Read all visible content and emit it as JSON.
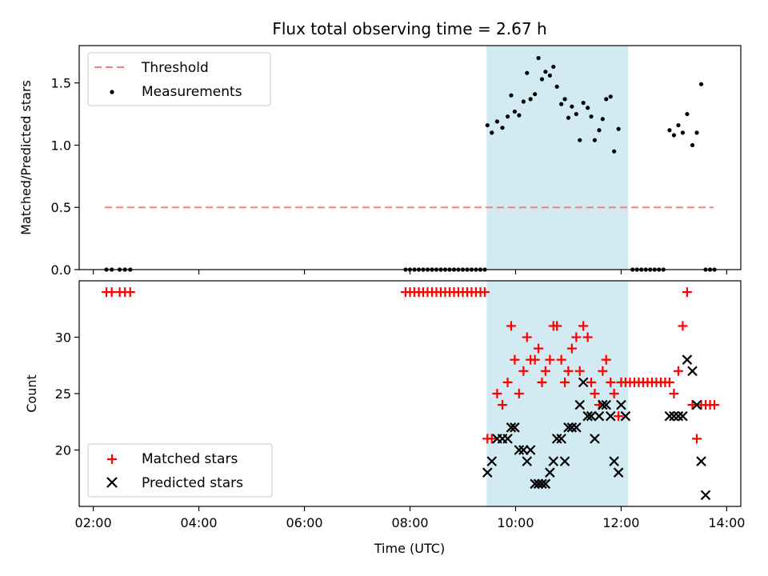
{
  "figure": {
    "title": "Flux total observing time = 2.67 h"
  },
  "chart_data": [
    {
      "type": "scatter",
      "panel": "top",
      "ylabel": "Matched/Predicted stars",
      "xlabel": "",
      "xlim": [
        "01:44",
        "14:16"
      ],
      "ylim": [
        0,
        1.8
      ],
      "yticks": [
        0.0,
        0.5,
        1.0,
        1.5
      ],
      "ytick_labels": [
        "0.0",
        "0.5",
        "1.0",
        "1.5"
      ],
      "legend_position": "upper-left",
      "highlight_span": {
        "from": "09:27",
        "to": "12:08",
        "color": "#add8e6"
      },
      "threshold": {
        "name": "Threshold",
        "value": 0.5,
        "from": "02:13",
        "to": "13:45",
        "color": "#ff7b7b"
      },
      "series": [
        {
          "name": "Measurements",
          "color": "#000000",
          "points": [
            [
              "02:15",
              0
            ],
            [
              "02:21",
              0
            ],
            [
              "02:30",
              0
            ],
            [
              "02:36",
              0
            ],
            [
              "02:42",
              0
            ],
            [
              "07:55",
              0
            ],
            [
              "08:00",
              0
            ],
            [
              "08:05",
              0
            ],
            [
              "08:10",
              0
            ],
            [
              "08:15",
              0
            ],
            [
              "08:20",
              0
            ],
            [
              "08:25",
              0
            ],
            [
              "08:30",
              0
            ],
            [
              "08:35",
              0
            ],
            [
              "08:40",
              0
            ],
            [
              "08:45",
              0
            ],
            [
              "08:50",
              0
            ],
            [
              "08:55",
              0
            ],
            [
              "09:00",
              0
            ],
            [
              "09:05",
              0
            ],
            [
              "09:10",
              0
            ],
            [
              "09:15",
              0
            ],
            [
              "09:20",
              0
            ],
            [
              "09:25",
              0
            ],
            [
              "09:28",
              1.16
            ],
            [
              "09:33",
              1.1
            ],
            [
              "09:39",
              1.19
            ],
            [
              "09:45",
              1.14
            ],
            [
              "09:51",
              1.23
            ],
            [
              "09:55",
              1.4
            ],
            [
              "09:59",
              1.27
            ],
            [
              "10:04",
              1.24
            ],
            [
              "10:09",
              1.35
            ],
            [
              "10:13",
              1.58
            ],
            [
              "10:17",
              1.37
            ],
            [
              "10:22",
              1.41
            ],
            [
              "10:26",
              1.7
            ],
            [
              "10:30",
              1.53
            ],
            [
              "10:34",
              1.59
            ],
            [
              "10:39",
              1.56
            ],
            [
              "10:43",
              1.63
            ],
            [
              "10:47",
              1.47
            ],
            [
              "10:52",
              1.33
            ],
            [
              "10:56",
              1.37
            ],
            [
              "11:00",
              1.22
            ],
            [
              "11:04",
              1.31
            ],
            [
              "11:09",
              1.25
            ],
            [
              "11:13",
              1.04
            ],
            [
              "11:17",
              1.34
            ],
            [
              "11:22",
              1.3
            ],
            [
              "11:26",
              1.23
            ],
            [
              "11:30",
              1.04
            ],
            [
              "11:35",
              1.12
            ],
            [
              "11:39",
              1.21
            ],
            [
              "11:43",
              1.37
            ],
            [
              "11:48",
              1.39
            ],
            [
              "11:52",
              0.95
            ],
            [
              "11:57",
              1.13
            ],
            [
              "12:13",
              0
            ],
            [
              "12:18",
              0
            ],
            [
              "12:23",
              0
            ],
            [
              "12:28",
              0
            ],
            [
              "12:33",
              0
            ],
            [
              "12:38",
              0
            ],
            [
              "12:43",
              0
            ],
            [
              "12:48",
              0
            ],
            [
              "12:55",
              1.12
            ],
            [
              "13:00",
              1.08
            ],
            [
              "13:05",
              1.16
            ],
            [
              "13:10",
              1.1
            ],
            [
              "13:15",
              1.25
            ],
            [
              "13:21",
              1.0
            ],
            [
              "13:26",
              1.1
            ],
            [
              "13:31",
              1.49
            ],
            [
              "13:36",
              0
            ],
            [
              "13:41",
              0
            ],
            [
              "13:46",
              0
            ]
          ]
        }
      ]
    },
    {
      "type": "scatter",
      "panel": "bottom",
      "xlabel": "Time (UTC)",
      "ylabel": "Count",
      "xlim": [
        "01:44",
        "14:16"
      ],
      "ylim": [
        15,
        35
      ],
      "yticks": [
        20,
        25,
        30
      ],
      "xticks": [
        "02:00",
        "04:00",
        "06:00",
        "08:00",
        "10:00",
        "12:00",
        "14:00"
      ],
      "legend_position": "lower-left",
      "highlight_span": {
        "from": "09:27",
        "to": "12:08",
        "color": "#add8e6"
      },
      "series": [
        {
          "name": "Matched stars",
          "marker": "plus",
          "color": "#ff0000",
          "points": [
            [
              "02:15",
              34
            ],
            [
              "02:21",
              34
            ],
            [
              "02:30",
              34
            ],
            [
              "02:36",
              34
            ],
            [
              "02:42",
              34
            ],
            [
              "07:55",
              34
            ],
            [
              "08:00",
              34
            ],
            [
              "08:05",
              34
            ],
            [
              "08:10",
              34
            ],
            [
              "08:15",
              34
            ],
            [
              "08:20",
              34
            ],
            [
              "08:25",
              34
            ],
            [
              "08:30",
              34
            ],
            [
              "08:35",
              34
            ],
            [
              "08:40",
              34
            ],
            [
              "08:45",
              34
            ],
            [
              "08:50",
              34
            ],
            [
              "08:55",
              34
            ],
            [
              "09:00",
              34
            ],
            [
              "09:05",
              34
            ],
            [
              "09:10",
              34
            ],
            [
              "09:15",
              34
            ],
            [
              "09:20",
              34
            ],
            [
              "09:25",
              34
            ],
            [
              "09:28",
              21
            ],
            [
              "09:33",
              21
            ],
            [
              "09:39",
              25
            ],
            [
              "09:45",
              24
            ],
            [
              "09:51",
              26
            ],
            [
              "09:55",
              31
            ],
            [
              "09:59",
              28
            ],
            [
              "10:04",
              25
            ],
            [
              "10:09",
              27
            ],
            [
              "10:13",
              30
            ],
            [
              "10:17",
              28
            ],
            [
              "10:22",
              28
            ],
            [
              "10:26",
              29
            ],
            [
              "10:30",
              26
            ],
            [
              "10:34",
              27
            ],
            [
              "10:39",
              28
            ],
            [
              "10:43",
              31
            ],
            [
              "10:47",
              31
            ],
            [
              "10:52",
              28
            ],
            [
              "10:56",
              26
            ],
            [
              "11:00",
              27
            ],
            [
              "11:04",
              29
            ],
            [
              "11:09",
              30
            ],
            [
              "11:13",
              27
            ],
            [
              "11:17",
              31
            ],
            [
              "11:22",
              30
            ],
            [
              "11:26",
              26
            ],
            [
              "11:30",
              25
            ],
            [
              "11:35",
              24
            ],
            [
              "11:39",
              27
            ],
            [
              "11:43",
              28
            ],
            [
              "11:48",
              26
            ],
            [
              "11:52",
              25
            ],
            [
              "11:57",
              23
            ],
            [
              "12:00",
              26
            ],
            [
              "12:05",
              26
            ],
            [
              "12:10",
              26
            ],
            [
              "12:15",
              26
            ],
            [
              "12:20",
              26
            ],
            [
              "12:25",
              26
            ],
            [
              "12:30",
              26
            ],
            [
              "12:35",
              26
            ],
            [
              "12:40",
              26
            ],
            [
              "12:45",
              26
            ],
            [
              "12:50",
              26
            ],
            [
              "12:55",
              26
            ],
            [
              "13:00",
              25
            ],
            [
              "13:05",
              27
            ],
            [
              "13:10",
              31
            ],
            [
              "13:15",
              34
            ],
            [
              "13:21",
              24
            ],
            [
              "13:26",
              21
            ],
            [
              "13:31",
              24
            ],
            [
              "13:36",
              24
            ],
            [
              "13:41",
              24
            ],
            [
              "13:46",
              24
            ]
          ]
        },
        {
          "name": "Predicted stars",
          "marker": "x",
          "color": "#000000",
          "points": [
            [
              "09:28",
              18
            ],
            [
              "09:33",
              19
            ],
            [
              "09:39",
              21
            ],
            [
              "09:45",
              21
            ],
            [
              "09:51",
              21
            ],
            [
              "09:55",
              22
            ],
            [
              "09:59",
              22
            ],
            [
              "10:04",
              20
            ],
            [
              "10:09",
              20
            ],
            [
              "10:13",
              19
            ],
            [
              "10:17",
              20
            ],
            [
              "10:22",
              17
            ],
            [
              "10:26",
              17
            ],
            [
              "10:30",
              17
            ],
            [
              "10:34",
              17
            ],
            [
              "10:39",
              18
            ],
            [
              "10:43",
              19
            ],
            [
              "10:47",
              21
            ],
            [
              "10:52",
              21
            ],
            [
              "10:56",
              19
            ],
            [
              "11:00",
              22
            ],
            [
              "11:04",
              22
            ],
            [
              "11:09",
              22
            ],
            [
              "11:13",
              24
            ],
            [
              "11:17",
              26
            ],
            [
              "11:22",
              23
            ],
            [
              "11:26",
              23
            ],
            [
              "11:30",
              21
            ],
            [
              "11:35",
              23
            ],
            [
              "11:39",
              24
            ],
            [
              "11:43",
              24
            ],
            [
              "11:48",
              23
            ],
            [
              "11:52",
              19
            ],
            [
              "11:57",
              18
            ],
            [
              "12:00",
              24
            ],
            [
              "12:05",
              23
            ],
            [
              "12:55",
              23
            ],
            [
              "13:00",
              23
            ],
            [
              "13:05",
              23
            ],
            [
              "13:10",
              23
            ],
            [
              "13:15",
              28
            ],
            [
              "13:21",
              27
            ],
            [
              "13:26",
              24
            ],
            [
              "13:31",
              19
            ],
            [
              "13:36",
              16
            ]
          ]
        }
      ]
    }
  ]
}
